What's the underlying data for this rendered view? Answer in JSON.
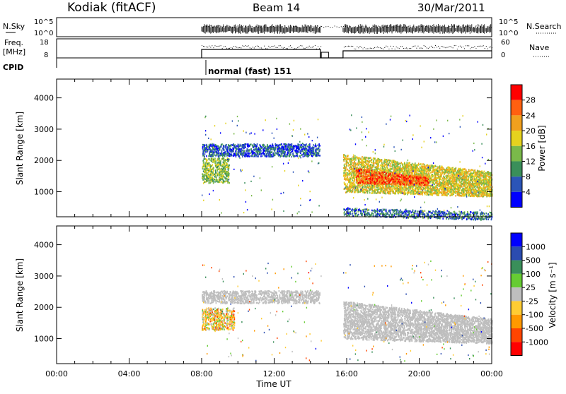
{
  "header": {
    "station": "Kodiak (fitACF)",
    "beam": "Beam 14",
    "date": "30/Mar/2011"
  },
  "noise_panel": {
    "left_label": "N.Sky",
    "right_label": "N.Search",
    "left_ticks": [
      "10^5",
      "10^0"
    ],
    "right_ticks": [
      "10^5",
      "10^0"
    ],
    "right_line_style": "dotted"
  },
  "freq_panel": {
    "left_label_1": "Freq.",
    "left_label_2": "[MHz]",
    "right_label": "Nave",
    "left_ticks": [
      "18",
      "8"
    ],
    "right_ticks": [
      "60",
      "0"
    ],
    "right_line_style": "dotted"
  },
  "cpid_panel": {
    "label": "CPID",
    "mode_text": "normal (fast) 151",
    "mode_start_hour": 8
  },
  "x_axis": {
    "label": "Time UT",
    "tick_labels": [
      "00:00",
      "04:00",
      "08:00",
      "12:00",
      "16:00",
      "20:00",
      "00:00"
    ],
    "range_hours": [
      0,
      24
    ]
  },
  "colors": {
    "power_scale": [
      "#0000ff",
      "#2b55b8",
      "#3a8f5a",
      "#7ab94a",
      "#e6d21e",
      "#f0a01e",
      "#ff6010",
      "#ff0000"
    ],
    "velocity_scale": [
      "#ff0000",
      "#ff4500",
      "#ff9900",
      "#ffcc33",
      "#bebebe",
      "#66cc33",
      "#3a8f5a",
      "#2b4cb0",
      "#0000ff"
    ],
    "ground_scatter": "#bebebe"
  },
  "chart_data": [
    {
      "type": "heatmap",
      "name": "power",
      "ylabel": "Slant Range [km]",
      "y_ticks": [
        "1000",
        "2000",
        "3000",
        "4000"
      ],
      "ylim": [
        200,
        4600
      ],
      "xlim": [
        0,
        24
      ],
      "colorbar_label": "Power [dB]",
      "colorbar_ticks": [
        "4",
        "8",
        "12",
        "16",
        "20",
        "24",
        "28"
      ],
      "colorbar_range": [
        0,
        32
      ],
      "scatter_regions": [
        {
          "t_start": 8.0,
          "t_end": 14.5,
          "range_start": 2150,
          "range_end": 2550,
          "power": 6
        },
        {
          "t_start": 8.0,
          "t_end": 9.5,
          "range_start": 1300,
          "range_end": 2100,
          "power": 14
        },
        {
          "t_start": 15.8,
          "t_end": 24.0,
          "range_start": 1000,
          "range_end": 2200,
          "power": 18
        },
        {
          "t_start": 16.5,
          "t_end": 20.5,
          "range_start": 1300,
          "range_end": 1800,
          "power": 26
        },
        {
          "t_start": 15.8,
          "t_end": 24.0,
          "range_start": 250,
          "range_end": 450,
          "power": 8
        }
      ]
    },
    {
      "type": "heatmap",
      "name": "velocity",
      "ylabel": "Slant Range [km]",
      "y_ticks": [
        "1000",
        "2000",
        "3000",
        "4000"
      ],
      "ylim": [
        200,
        4600
      ],
      "xlim": [
        0,
        24
      ],
      "colorbar_label": "Velocity [m s⁻¹]",
      "colorbar_ticks": [
        "1000",
        "500",
        "100",
        "25",
        "-25",
        "-100",
        "-500",
        "-1000"
      ],
      "scatter_regions": [
        {
          "t_start": 8.0,
          "t_end": 14.5,
          "range_start": 2150,
          "range_end": 2550,
          "velocity": "ground"
        },
        {
          "t_start": 8.0,
          "t_end": 9.8,
          "range_start": 1300,
          "range_end": 2000,
          "velocity": -200
        },
        {
          "t_start": 15.8,
          "t_end": 24.0,
          "range_start": 1000,
          "range_end": 2200,
          "velocity": "ground"
        }
      ]
    }
  ]
}
